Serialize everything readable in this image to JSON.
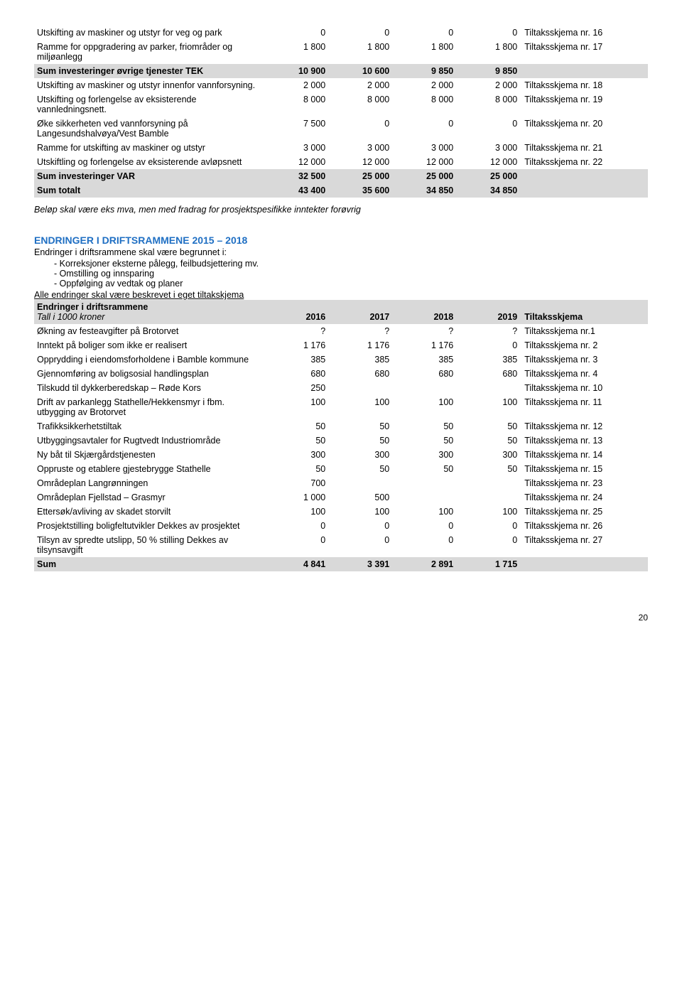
{
  "table1": {
    "rows": [
      {
        "label": "Utskifting av maskiner og utstyr for veg og park",
        "v": [
          "0",
          "0",
          "0",
          "0"
        ],
        "ref": "Tiltaksskjema nr. 16"
      },
      {
        "label": "Ramme for oppgradering av parker, friområder og miljøanlegg",
        "v": [
          "1 800",
          "1 800",
          "1 800",
          "1 800"
        ],
        "ref": "Tiltaksskjema nr. 17"
      },
      {
        "label": "Sum investeringer øvrige tjenester TEK",
        "v": [
          "10 900",
          "10 600",
          "9 850",
          "9 850"
        ],
        "ref": "",
        "grey": true,
        "bold": true
      },
      {
        "label": "Utskifting av maskiner og utstyr innenfor vannforsyning.",
        "v": [
          "2 000",
          "2 000",
          "2 000",
          "2 000"
        ],
        "ref": "Tiltaksskjema nr. 18"
      },
      {
        "label": "Utskifting og forlengelse av eksisterende vannledningsnett.",
        "v": [
          "8 000",
          "8 000",
          "8 000",
          "8 000"
        ],
        "ref": "Tiltaksskjema nr. 19"
      },
      {
        "label": "Øke sikkerheten ved vannforsyning på Langesundshalvøya/Vest Bamble",
        "v": [
          "7 500",
          "0",
          "0",
          "0"
        ],
        "ref": "Tiltaksskjema nr. 20"
      },
      {
        "label": "Ramme for utskifting av maskiner og utstyr",
        "v": [
          "3 000",
          "3 000",
          "3 000",
          "3 000"
        ],
        "ref": "Tiltaksskjema nr. 21"
      },
      {
        "label": "Utskiftling og forlengelse av eksisterende avløpsnett",
        "v": [
          "12 000",
          "12 000",
          "12 000",
          "12 000"
        ],
        "ref": "Tiltaksskjema nr. 22"
      },
      {
        "label": "Sum investeringer VAR",
        "v": [
          "32 500",
          "25 000",
          "25 000",
          "25 000"
        ],
        "ref": "",
        "grey": true,
        "bold": true
      },
      {
        "label": "Sum totalt",
        "v": [
          "43 400",
          "35 600",
          "34 850",
          "34 850"
        ],
        "ref": "",
        "grey": true,
        "bold": true
      }
    ]
  },
  "italic_note": "Beløp skal være eks mva, men med fradrag for prosjektspesifikke inntekter forøvrig",
  "section": {
    "title": "ENDRINGER I DRIFTSRAMMENE 2015 – 2018",
    "intro": "Endringer i driftsrammene skal være begrunnet i:",
    "bullets": [
      "Korreksjoner eksterne pålegg, feilbudsjettering mv.",
      "Omstilling og innsparing",
      "Oppfølging av vedtak og planer"
    ],
    "outro_underlined": "Alle endringer skal være beskrevet i eget tiltakskjema"
  },
  "table2": {
    "title": "Endringer i driftsrammene",
    "subtitle": "Tall i 1000 kroner",
    "years": [
      "2016",
      "2017",
      "2018",
      "2019"
    ],
    "ref_head": "Tiltaksskjema",
    "rows": [
      {
        "label": "Økning av festeavgifter på Brotorvet",
        "v": [
          "?",
          "?",
          "?",
          "?"
        ],
        "ref": "Tiltaksskjema nr.1"
      },
      {
        "label": "Inntekt på boliger som ikke er realisert",
        "v": [
          "1 176",
          "1 176",
          "1 176",
          "0"
        ],
        "ref": "Tiltaksskjema nr. 2"
      },
      {
        "label": "Opprydding i eiendomsforholdene i Bamble kommune",
        "v": [
          "385",
          "385",
          "385",
          "385"
        ],
        "ref": "Tiltaksskjema nr. 3"
      },
      {
        "label": "Gjennomføring av boligsosial handlingsplan",
        "v": [
          "680",
          "680",
          "680",
          "680"
        ],
        "ref": "Tiltaksskjema nr. 4"
      },
      {
        "label": "Tilskudd til dykkerberedskap – Røde Kors",
        "v": [
          "250",
          "",
          "",
          ""
        ],
        "ref": "Tiltaksskjema nr. 10"
      },
      {
        "label": "Drift av parkanlegg Stathelle/Hekkensmyr i fbm. utbygging av Brotorvet",
        "v": [
          "100",
          "100",
          "100",
          "100"
        ],
        "ref": "Tiltaksskjema nr. 11"
      },
      {
        "label": "Trafikksikkerhetstiltak",
        "v": [
          "50",
          "50",
          "50",
          "50"
        ],
        "ref": "Tiltaksskjema nr. 12"
      },
      {
        "label": "Utbyggingsavtaler for Rugtvedt Industriområde",
        "v": [
          "50",
          "50",
          "50",
          "50"
        ],
        "ref": "Tiltaksskjema nr. 13"
      },
      {
        "label": "Ny båt til Skjærgårdstjenesten",
        "v": [
          "300",
          "300",
          "300",
          "300"
        ],
        "ref": "Tiltaksskjema nr. 14"
      },
      {
        "label": "Oppruste og etablere gjestebrygge Stathelle",
        "v": [
          "50",
          "50",
          "50",
          "50"
        ],
        "ref": "Tiltaksskjema nr. 15"
      },
      {
        "label": "Områdeplan Langrønningen",
        "v": [
          "700",
          "",
          "",
          ""
        ],
        "ref": "Tiltaksskjema nr. 23"
      },
      {
        "label": "Områdeplan Fjellstad – Grasmyr",
        "v": [
          "1 000",
          "500",
          "",
          ""
        ],
        "ref": "Tiltaksskjema nr. 24"
      },
      {
        "label": "Ettersøk/avliving av skadet storvilt",
        "v": [
          "100",
          "100",
          "100",
          "100"
        ],
        "ref": "Tiltaksskjema nr. 25"
      },
      {
        "label": "Prosjektstilling boligfeltutvikler Dekkes av prosjektet",
        "v": [
          "0",
          "0",
          "0",
          "0"
        ],
        "ref": "Tiltaksskjema nr. 26"
      },
      {
        "label": "Tilsyn av spredte utslipp, 50 % stilling Dekkes av tilsynsavgift",
        "v": [
          "0",
          "0",
          "0",
          "0"
        ],
        "ref": "Tiltaksskjema nr. 27"
      },
      {
        "label": "Sum",
        "v": [
          "4 841",
          "3 391",
          "2 891",
          "1 715"
        ],
        "ref": "",
        "grey": true,
        "bold": true
      }
    ]
  },
  "page_number": "20"
}
